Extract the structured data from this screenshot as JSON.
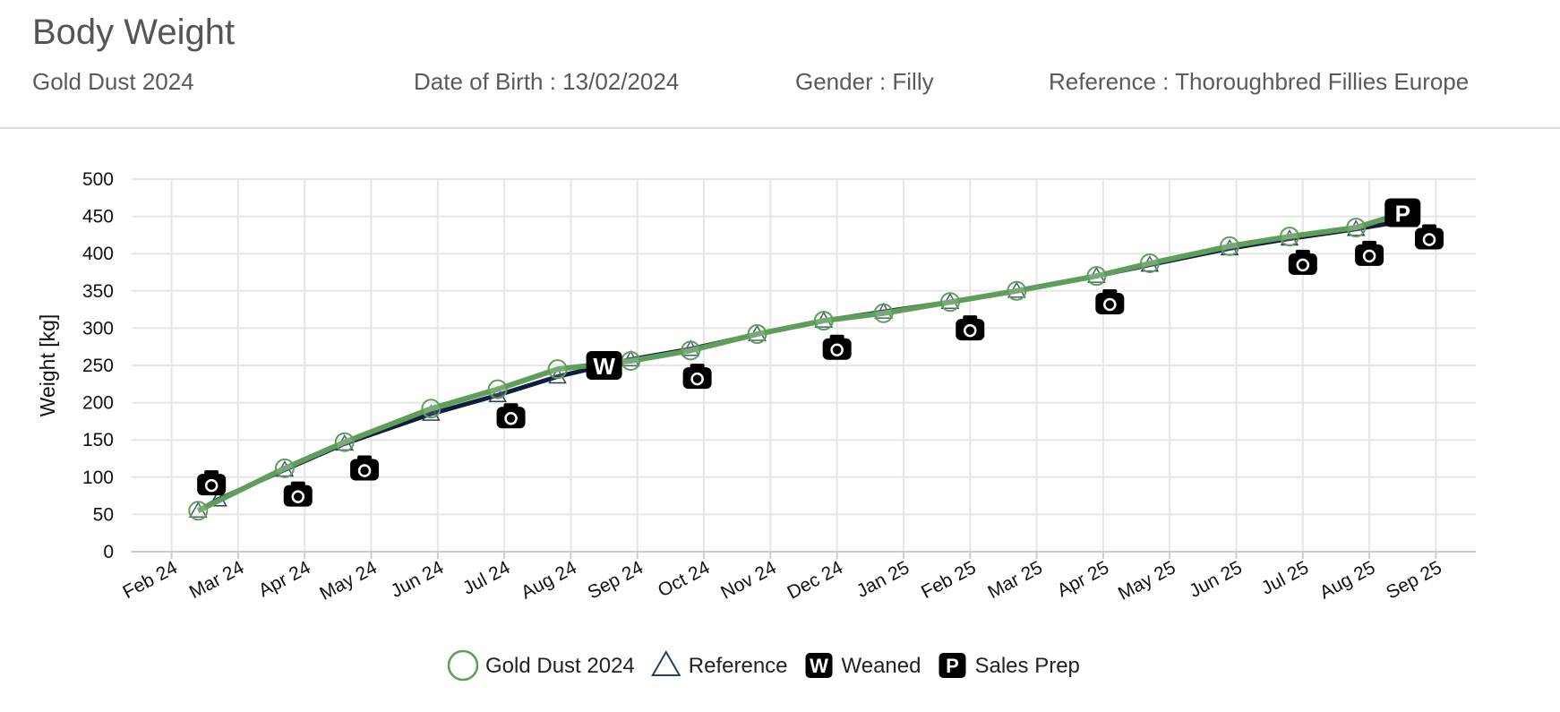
{
  "header": {
    "title": "Body Weight",
    "horse_name": "Gold Dust 2024",
    "dob": "Date of Birth : 13/02/2024",
    "gender": "Gender : Filly",
    "reference": "Reference : Thoroughbred Fillies Europe"
  },
  "colors": {
    "horse": "#5e9e5a",
    "reference": "#0f1e3c",
    "marker_bg": "#000000",
    "grid": "#e6e6e6"
  },
  "chart_data": {
    "type": "line",
    "title": "",
    "xlabel": "",
    "ylabel": "Weight [kg]",
    "ylim": [
      0,
      500
    ],
    "yticks": [
      0,
      50,
      100,
      150,
      200,
      250,
      300,
      350,
      400,
      450,
      500
    ],
    "xlim_months": [
      -0.6,
      19.6
    ],
    "xtick_labels": [
      "Feb 24",
      "Mar 24",
      "Apr 24",
      "May 24",
      "Jun 24",
      "Jul 24",
      "Aug 24",
      "Sep 24",
      "Oct 24",
      "Nov 24",
      "Dec 24",
      "Jan 25",
      "Feb 25",
      "Mar 25",
      "Apr 25",
      "May 25",
      "Jun 25",
      "Jul 25",
      "Aug 25",
      "Sep 25"
    ],
    "legend_position": "bottom-center",
    "series": [
      {
        "name": "Gold Dust 2024",
        "marker": "circle",
        "x": [
          0.4,
          1.7,
          2.6,
          3.9,
          4.9,
          5.8,
          6.9,
          7.8,
          8.8,
          9.8,
          10.7,
          11.7,
          12.7,
          13.9,
          14.7,
          15.9,
          16.8,
          17.8,
          18.6
        ],
        "y": [
          55,
          112,
          147,
          192,
          218,
          245,
          256,
          270,
          292,
          310,
          320,
          335,
          350,
          370,
          387,
          410,
          423,
          435,
          457
        ]
      },
      {
        "name": "Reference",
        "marker": "triangle",
        "x": [
          0.4,
          0.7,
          1.7,
          2.6,
          3.9,
          4.9,
          5.8,
          6.9,
          7.8,
          8.8,
          9.8,
          10.7,
          11.7,
          12.7,
          13.9,
          14.7,
          15.9,
          16.8,
          17.8,
          18.6
        ],
        "y": [
          55,
          70,
          110,
          145,
          185,
          210,
          235,
          258,
          272,
          292,
          310,
          322,
          335,
          350,
          370,
          385,
          407,
          420,
          433,
          445
        ]
      }
    ],
    "photos": [
      {
        "x": 0.6,
        "y": 90
      },
      {
        "x": 1.9,
        "y": 75
      },
      {
        "x": 2.9,
        "y": 110
      },
      {
        "x": 5.1,
        "y": 180
      },
      {
        "x": 7.9,
        "y": 233
      },
      {
        "x": 10.0,
        "y": 272
      },
      {
        "x": 12.0,
        "y": 298
      },
      {
        "x": 14.1,
        "y": 333
      },
      {
        "x": 17.0,
        "y": 386
      },
      {
        "x": 18.0,
        "y": 398
      },
      {
        "x": 18.9,
        "y": 420
      }
    ],
    "events": [
      {
        "label": "W",
        "name": "Weaned",
        "x": 6.5,
        "y": 250
      },
      {
        "label": "P",
        "name": "Sales Prep",
        "x": 18.5,
        "y": 455
      }
    ],
    "legend": [
      {
        "label": "Gold Dust 2024",
        "symbol": "circle"
      },
      {
        "label": "Reference",
        "symbol": "triangle"
      },
      {
        "label": "Weaned",
        "symbol": "W"
      },
      {
        "label": "Sales Prep",
        "symbol": "P"
      }
    ]
  }
}
